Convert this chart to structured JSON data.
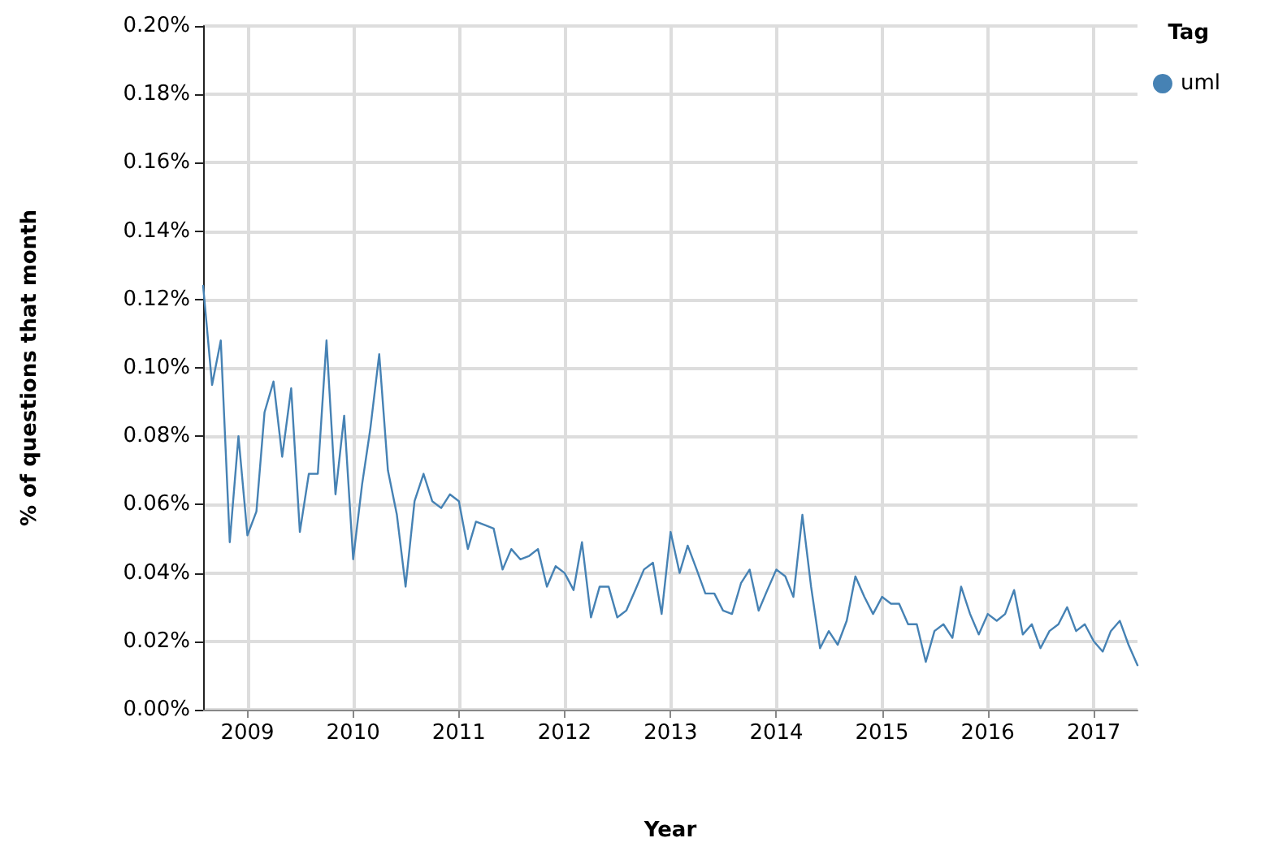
{
  "chart_data": {
    "type": "line",
    "xlabel": "Year",
    "ylabel": "% of questions that month",
    "legend_title": "Tag",
    "legend": "top right",
    "grid": true,
    "marker": "none",
    "x": [
      "2008-08",
      "2008-09",
      "2008-10",
      "2008-11",
      "2008-12",
      "2009-01",
      "2009-02",
      "2009-03",
      "2009-04",
      "2009-05",
      "2009-06",
      "2009-07",
      "2009-08",
      "2009-09",
      "2009-10",
      "2009-11",
      "2009-12",
      "2010-01",
      "2010-02",
      "2010-03",
      "2010-04",
      "2010-05",
      "2010-06",
      "2010-07",
      "2010-08",
      "2010-09",
      "2010-10",
      "2010-11",
      "2010-12",
      "2011-01",
      "2011-02",
      "2011-03",
      "2011-04",
      "2011-05",
      "2011-06",
      "2011-07",
      "2011-08",
      "2011-09",
      "2011-10",
      "2011-11",
      "2011-12",
      "2012-01",
      "2012-02",
      "2012-03",
      "2012-04",
      "2012-05",
      "2012-06",
      "2012-07",
      "2012-08",
      "2012-09",
      "2012-10",
      "2012-11",
      "2012-12",
      "2013-01",
      "2013-02",
      "2013-03",
      "2013-04",
      "2013-05",
      "2013-06",
      "2013-07",
      "2013-08",
      "2013-09",
      "2013-10",
      "2013-11",
      "2013-12",
      "2014-01",
      "2014-02",
      "2014-03",
      "2014-04",
      "2014-05",
      "2014-06",
      "2014-07",
      "2014-08",
      "2014-09",
      "2014-10",
      "2014-11",
      "2014-12",
      "2015-01",
      "2015-02",
      "2015-03",
      "2015-04",
      "2015-05",
      "2015-06",
      "2015-07",
      "2015-08",
      "2015-09",
      "2015-10",
      "2015-11",
      "2015-12",
      "2016-01",
      "2016-02",
      "2016-03",
      "2016-04",
      "2016-05",
      "2016-06",
      "2016-07",
      "2016-08",
      "2016-09",
      "2016-10",
      "2016-11",
      "2016-12",
      "2017-01",
      "2017-02",
      "2017-03",
      "2017-04",
      "2017-05",
      "2017-06"
    ],
    "series": [
      {
        "name": "uml",
        "color": "#4682b4",
        "values": [
          0.124,
          0.095,
          0.108,
          0.049,
          0.08,
          0.051,
          0.058,
          0.087,
          0.096,
          0.074,
          0.094,
          0.052,
          0.069,
          0.069,
          0.108,
          0.063,
          0.086,
          0.044,
          0.066,
          0.082,
          0.104,
          0.07,
          0.057,
          0.036,
          0.061,
          0.069,
          0.061,
          0.059,
          0.063,
          0.061,
          0.047,
          0.055,
          0.054,
          0.053,
          0.041,
          0.047,
          0.044,
          0.045,
          0.047,
          0.036,
          0.042,
          0.04,
          0.035,
          0.049,
          0.027,
          0.036,
          0.036,
          0.027,
          0.029,
          0.035,
          0.041,
          0.043,
          0.028,
          0.052,
          0.04,
          0.048,
          0.041,
          0.034,
          0.034,
          0.029,
          0.028,
          0.037,
          0.041,
          0.029,
          0.035,
          0.041,
          0.039,
          0.033,
          0.057,
          0.036,
          0.018,
          0.023,
          0.019,
          0.026,
          0.039,
          0.033,
          0.028,
          0.033,
          0.031,
          0.031,
          0.025,
          0.025,
          0.014,
          0.023,
          0.025,
          0.021,
          0.036,
          0.028,
          0.022,
          0.028,
          0.026,
          0.028,
          0.035,
          0.022,
          0.025,
          0.018,
          0.023,
          0.025,
          0.03,
          0.023,
          0.025,
          0.02,
          0.017,
          0.023,
          0.026,
          0.019,
          0.013
        ]
      }
    ],
    "xlim": [
      "2008-08",
      "2017-06"
    ],
    "xticks": [
      "2009",
      "2010",
      "2011",
      "2012",
      "2013",
      "2014",
      "2015",
      "2016",
      "2017"
    ],
    "ylim": [
      0,
      0.2
    ],
    "yticks": [
      {
        "value": 0,
        "label": "0.00%"
      },
      {
        "value": 0.02,
        "label": "0.02%"
      },
      {
        "value": 0.04,
        "label": "0.04%"
      },
      {
        "value": 0.06,
        "label": "0.06%"
      },
      {
        "value": 0.08,
        "label": "0.08%"
      },
      {
        "value": 0.1,
        "label": "0.10%"
      },
      {
        "value": 0.12,
        "label": "0.12%"
      },
      {
        "value": 0.14,
        "label": "0.14%"
      },
      {
        "value": 0.16,
        "label": "0.16%"
      },
      {
        "value": 0.18,
        "label": "0.18%"
      },
      {
        "value": 0.2,
        "label": "0.20%"
      }
    ]
  }
}
